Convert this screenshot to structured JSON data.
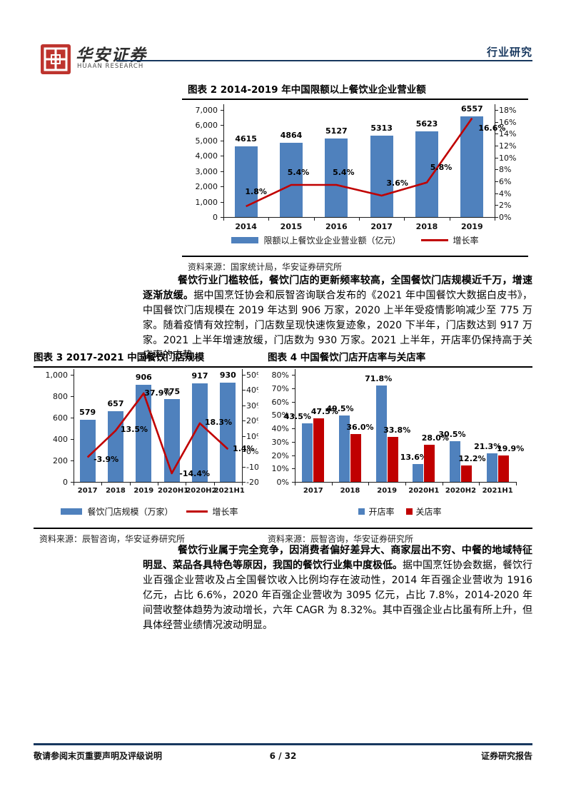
{
  "header": {
    "brand": "华安证券",
    "brand_sub": "HUAAN RESEARCH",
    "section": "行业研究"
  },
  "figure2": {
    "title": "图表 2 2014-2019 年中国限额以上餐饮业企业营业额",
    "source": "资料来源：国家统计局，华安证券研究所"
  },
  "figure3": {
    "title": "图表 3 2017-2021 中国餐饮门店规模",
    "source": "资料来源：辰智咨询，华安证券研究所"
  },
  "figure4": {
    "title": "图表 4 中国餐饮门店开店率与关店率",
    "source": "资料来源：辰智咨询，华安证券研究所"
  },
  "paragraphs": {
    "p1_bold": "餐饮行业门槛较低，餐饮门店的更新频率较高，全国餐饮门店规模近千万，增速逐渐放缓。",
    "p1_text": "据中国烹饪协会和辰智咨询联合发布的《2021 年中国餐饮大数据白皮书》，中国餐饮门店规模在 2019 年达到 906 万家，2020 上半年受疫情影响减少至 775 万家。随着疫情有效控制，门店数呈现快速恢复迹象，2020 下半年，门店数达到 917 万家。2021 上半年增速放缓，门店数为 930 万家。2021 上半年，开店率仍保持高于关店率的态势。",
    "p2_bold": "餐饮行业属于完全竞争，因消费者偏好差异大、商家层出不穷、中餐的地域特征明显、菜品各具特色等原因，我国的餐饮行业集中度极低。",
    "p2_text": "据中国烹饪协会数据，餐饮行业百强企业营收及占全国餐饮收入比例均存在波动性，2014 年百强企业营收为 1916 亿元，占比 6.6%，2020 年百强企业营收为 3095 亿元，占比 7.8%，2014-2020 年间营收整体趋势为波动增长，六年 CAGR 为 8.32%。其中百强企业占比虽有所上升，但具体经营业绩情况波动明显。"
  },
  "footer": {
    "left": "敬请参阅末页重要声明及评级说明",
    "center": "6 / 32",
    "right": "证券研究报告"
  },
  "colors": {
    "bar_blue": "#4F81BD",
    "line_red": "#C00000",
    "navy": "#17375E",
    "seal_red": "#BE342E"
  },
  "chart_data": [
    {
      "name": "figure2",
      "type": "bar",
      "title": "图表 2 2014-2019 年中国限额以上餐饮业企业营业额",
      "categories": [
        "2014",
        "2015",
        "2016",
        "2017",
        "2018",
        "2019"
      ],
      "series": [
        {
          "name": "限额以上餐饮业企业营业额（亿元）",
          "type": "bar",
          "axis": "left",
          "color": "#4F81BD",
          "values": [
            4615,
            4864,
            5127,
            5313,
            5623,
            6557
          ],
          "labels": [
            "4615",
            "4864",
            "5127",
            "5313",
            "5623",
            "6557"
          ]
        },
        {
          "name": "增长率",
          "type": "line",
          "axis": "right",
          "color": "#C00000",
          "values": [
            1.8,
            5.4,
            5.4,
            3.6,
            5.8,
            16.6
          ],
          "labels": [
            "1.8%",
            "5.4%",
            "5.4%",
            "3.6%",
            "5.8%",
            "16.6%"
          ]
        }
      ],
      "left_axis": {
        "min": 0,
        "max": 7000,
        "step": 1000,
        "ticks": [
          "0",
          "1,000",
          "2,000",
          "3,000",
          "4,000",
          "5,000",
          "6,000",
          "7,000"
        ]
      },
      "right_axis": {
        "min": 0,
        "max": 18,
        "step": 2,
        "ticks": [
          "0%",
          "2%",
          "4%",
          "6%",
          "8%",
          "10%",
          "12%",
          "14%",
          "16%",
          "18%"
        ]
      },
      "legend_position": "bottom",
      "grid": false
    },
    {
      "name": "figure3",
      "type": "bar",
      "title": "图表 3 2017-2021 中国餐饮门店规模",
      "categories": [
        "2017",
        "2018",
        "2019",
        "2020H1",
        "2020H2",
        "2021H1"
      ],
      "series": [
        {
          "name": "餐饮门店规模（万家）",
          "type": "bar",
          "axis": "left",
          "color": "#4F81BD",
          "values": [
            579,
            657,
            906,
            775,
            917,
            930
          ],
          "labels": [
            "579",
            "657",
            "906",
            "775",
            "917",
            "930"
          ]
        },
        {
          "name": "增长率",
          "type": "line",
          "axis": "right",
          "color": "#C00000",
          "values": [
            -3.9,
            13.5,
            37.9,
            -14.4,
            18.3,
            1.4
          ],
          "labels": [
            "-3.9%",
            "13.5%",
            "37.9%",
            "-14.4%",
            "18.3%",
            "1.4%"
          ]
        }
      ],
      "left_axis": {
        "min": 0,
        "max": 1000,
        "step": 200,
        "ticks": [
          "0",
          "200",
          "400",
          "600",
          "800",
          "1,000"
        ]
      },
      "right_axis": {
        "min": -20,
        "max": 50,
        "step": 10,
        "ticks": [
          "-20%",
          "-10%",
          "0%",
          "10%",
          "20%",
          "30%",
          "40%",
          "50%"
        ]
      },
      "legend_position": "bottom",
      "grid": false
    },
    {
      "name": "figure4",
      "type": "bar",
      "title": "图表 4 中国餐饮门店开店率与关店率",
      "categories": [
        "2017",
        "2018",
        "2019",
        "2020H1",
        "2020H2",
        "2021H1"
      ],
      "series": [
        {
          "name": "开店率",
          "type": "bar",
          "axis": "left",
          "color": "#4F81BD",
          "values": [
            43.5,
            49.5,
            71.8,
            13.6,
            30.5,
            21.3
          ],
          "labels": [
            "43.5%",
            "49.5%",
            "71.8%",
            "13.6%",
            "30.5%",
            "21.3%"
          ]
        },
        {
          "name": "关店率",
          "type": "bar",
          "axis": "left",
          "color": "#C00000",
          "values": [
            47.5,
            36.0,
            33.8,
            28.0,
            12.2,
            19.9
          ],
          "labels": [
            "47.5%",
            "36.0%",
            "33.8%",
            "28.0%",
            "12.2%",
            "19.9%"
          ]
        }
      ],
      "left_axis": {
        "min": 0,
        "max": 80,
        "step": 10,
        "ticks": [
          "0%",
          "10%",
          "20%",
          "30%",
          "40%",
          "50%",
          "60%",
          "70%",
          "80%"
        ]
      },
      "legend_position": "bottom",
      "grid": false
    }
  ]
}
